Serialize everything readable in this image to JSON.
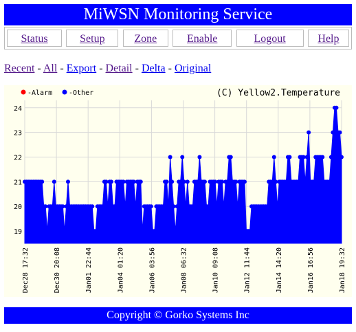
{
  "app": {
    "title": "MiWSN Monitoring Service",
    "footer": "Copyright © Gorko Systems Inc"
  },
  "nav": [
    {
      "label": "Status"
    },
    {
      "label": "Setup"
    },
    {
      "label": "Zone"
    },
    {
      "label": "Enable"
    },
    {
      "label": "Logout"
    },
    {
      "label": "Help"
    }
  ],
  "views": [
    {
      "label": "Recent",
      "sep": " - "
    },
    {
      "label": "All",
      "sep": " - "
    },
    {
      "label": "Export",
      "sep": " - "
    },
    {
      "label": "Detail",
      "sep": " - "
    },
    {
      "label": "Delta",
      "sep": " - "
    },
    {
      "label": "Original",
      "sep": ""
    }
  ],
  "chart_data": {
    "type": "area",
    "title": "(C) Yellow2.Temperature",
    "legend": [
      {
        "name": "Alarm",
        "color": "#ff0000"
      },
      {
        "name": "Other",
        "color": "#0000ff"
      }
    ],
    "legend_position": "top-left",
    "ylim": [
      18.5,
      24.3
    ],
    "yticks": [
      19,
      20,
      21,
      22,
      23,
      24
    ],
    "xticks": [
      "Dec28 17:32",
      "Dec30 20:08",
      "Jan01 22:44",
      "Jan04 01:20",
      "Jan06 03:56",
      "Jan08 06:32",
      "Jan10 09:08",
      "Jan12 11:44",
      "Jan14 14:20",
      "Jan16 16:56",
      "Jan18 19:32"
    ],
    "series": [
      {
        "name": "Other",
        "color": "#0000ff",
        "values": [
          21,
          21,
          21,
          21,
          21,
          21,
          21,
          21,
          21,
          21,
          21,
          20,
          20,
          19,
          20,
          20,
          20,
          21,
          20,
          20,
          20,
          20,
          20,
          19,
          20,
          21,
          20,
          20,
          20,
          20,
          20,
          20,
          20,
          20,
          20,
          20,
          20,
          20,
          20,
          20,
          19,
          19,
          20,
          20,
          20,
          20,
          21,
          21,
          20,
          21,
          21,
          20,
          20,
          21,
          21,
          21,
          21,
          21,
          20,
          21,
          21,
          21,
          21,
          21,
          20,
          21,
          21,
          21,
          19,
          20,
          20,
          20,
          20,
          20,
          19,
          19,
          20,
          20,
          20,
          20,
          20,
          21,
          21,
          20,
          22,
          21,
          20,
          19,
          20,
          21,
          21,
          22,
          21,
          20,
          21,
          20,
          20,
          20,
          21,
          21,
          21,
          22,
          21,
          21,
          21,
          20,
          20,
          21,
          21,
          21,
          21,
          20,
          21,
          21,
          21,
          20,
          21,
          21,
          22,
          22,
          21,
          21,
          21,
          20,
          21,
          21,
          21,
          21,
          19,
          19,
          19,
          20,
          20,
          20,
          20,
          20,
          20,
          20,
          20,
          20,
          20,
          21,
          21,
          21,
          22,
          21,
          20,
          21,
          21,
          21,
          21,
          21,
          22,
          22,
          21,
          21,
          21,
          21,
          21,
          22,
          22,
          22,
          21,
          22,
          23,
          21,
          21,
          21,
          22,
          22,
          22,
          22,
          22,
          21,
          21,
          21,
          21,
          22,
          23,
          24,
          24,
          23,
          23,
          22
        ]
      }
    ]
  }
}
